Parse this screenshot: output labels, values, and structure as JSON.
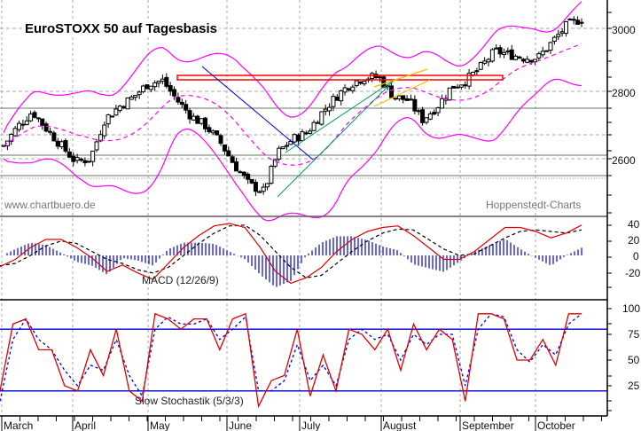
{
  "chart_data": [
    {
      "panel": "price",
      "type": "candlestick",
      "title": "EuroSTOXX 50 auf Tagesbasis",
      "watermark_left": "www.chartbuero.de",
      "watermark_right": "Hoppenstedt-Charts",
      "ylabel": "",
      "ylim": [
        2460,
        3060
      ],
      "yticks": [
        2600,
        2800,
        3000
      ],
      "months": [
        "March",
        "April",
        "May",
        "June",
        "July",
        "August",
        "September",
        "October"
      ],
      "approx_close": [
        2640,
        2700,
        2745,
        2690,
        2640,
        2590,
        2600,
        2720,
        2760,
        2790,
        2830,
        2840,
        2780,
        2730,
        2700,
        2650,
        2580,
        2520,
        2500,
        2620,
        2660,
        2680,
        2740,
        2790,
        2830,
        2850,
        2850,
        2790,
        2780,
        2720,
        2760,
        2820,
        2840,
        2880,
        2930,
        2920,
        2910,
        2910,
        2960,
        3010,
        3030
      ],
      "overlays": {
        "bollinger_bands": {
          "color": "#ff00ff",
          "style": "solid"
        },
        "moving_average": {
          "color": "#ff00ff",
          "style": "dashed"
        },
        "resistance_box": {
          "color": "#ff0000",
          "y_range": [
            2835,
            2850
          ]
        },
        "downtrend_line": {
          "color": "#0000cc"
        },
        "uptrend_channel": {
          "color": "#009966"
        },
        "short_channel": {
          "color": "#ffbb00"
        },
        "horizontal_lines": [
          2752,
          2612,
          2555
        ]
      }
    },
    {
      "panel": "macd",
      "type": "line",
      "label": "MACD (12/26/9)",
      "ylim": [
        -40,
        50
      ],
      "yticks": [
        40,
        20,
        0,
        -20
      ],
      "series": [
        {
          "name": "MACD",
          "color": "#e00000",
          "style": "solid",
          "values": [
            -14,
            -5,
            10,
            20,
            20,
            10,
            -3,
            -20,
            -12,
            -22,
            -30,
            -10,
            10,
            25,
            37,
            40,
            35,
            10,
            -20,
            -35,
            -28,
            -15,
            5,
            20,
            30,
            35,
            37,
            25,
            10,
            -5,
            -5,
            5,
            20,
            35,
            35,
            30,
            22,
            28,
            38
          ]
        },
        {
          "name": "Signal",
          "color": "#000000",
          "style": "dashed",
          "values": [
            -13,
            -10,
            0,
            12,
            18,
            15,
            5,
            -5,
            -10,
            -18,
            -22,
            -15,
            0,
            15,
            28,
            37,
            38,
            25,
            5,
            -15,
            -28,
            -25,
            -10,
            5,
            18,
            28,
            33,
            32,
            20,
            8,
            0,
            2,
            12,
            22,
            30,
            32,
            30,
            28,
            32
          ]
        },
        {
          "name": "Histogram",
          "color": "#0000dd",
          "style": "bars"
        }
      ]
    },
    {
      "panel": "stochastic",
      "type": "line",
      "label": "Slow Stochastik (5/3/3)",
      "ylim": [
        0,
        110
      ],
      "yticks": [
        100,
        75,
        50,
        25
      ],
      "reference_lines": [
        80,
        20
      ],
      "series": [
        {
          "name": "%K",
          "color": "#e00000",
          "style": "solid",
          "values": [
            20,
            85,
            90,
            60,
            60,
            25,
            20,
            60,
            35,
            80,
            20,
            10,
            95,
            90,
            80,
            90,
            90,
            60,
            90,
            95,
            5,
            30,
            35,
            80,
            15,
            55,
            20,
            80,
            75,
            60,
            80,
            40,
            85,
            60,
            80,
            70,
            10,
            95,
            95,
            90,
            50,
            50,
            70,
            45,
            95,
            95
          ]
        },
        {
          "name": "%D",
          "color": "#0000dd",
          "style": "dashed",
          "values": [
            10,
            70,
            90,
            70,
            60,
            40,
            25,
            45,
            40,
            70,
            35,
            15,
            80,
            92,
            85,
            85,
            90,
            70,
            80,
            92,
            20,
            20,
            30,
            65,
            30,
            45,
            25,
            70,
            80,
            70,
            75,
            50,
            75,
            65,
            75,
            75,
            25,
            80,
            95,
            92,
            60,
            48,
            65,
            55,
            85,
            95
          ]
        }
      ]
    }
  ],
  "ui": {
    "title": "EuroSTOXX 50 auf Tagesbasis",
    "watermark_left": "www.chartbuero.de",
    "watermark_right": "Hoppenstedt-Charts",
    "macd_label": "MACD (12/26/9)",
    "stoch_label": "Slow Stochastik (5/3/3)",
    "price_ticks": [
      "3000",
      "2800",
      "2600"
    ],
    "macd_ticks": [
      "40",
      "20",
      "0",
      "-20"
    ],
    "stoch_ticks": [
      "100",
      "75",
      "50",
      "25"
    ],
    "months": [
      "March",
      "April",
      "May",
      "June",
      "July",
      "August",
      "September",
      "October"
    ],
    "colors": {
      "candle": "#000000",
      "bollinger": "#ff00ff",
      "resistance": "#ff0000",
      "downtrend": "#0000cc",
      "uptrend": "#009966",
      "short_channel": "#ffbb00",
      "macd": "#e00000",
      "signal": "#000000",
      "histogram": "#0000dd",
      "stoch_k": "#e00000",
      "stoch_d": "#0000dd",
      "grid": "#aaaaaa",
      "hline": "#667766"
    }
  }
}
